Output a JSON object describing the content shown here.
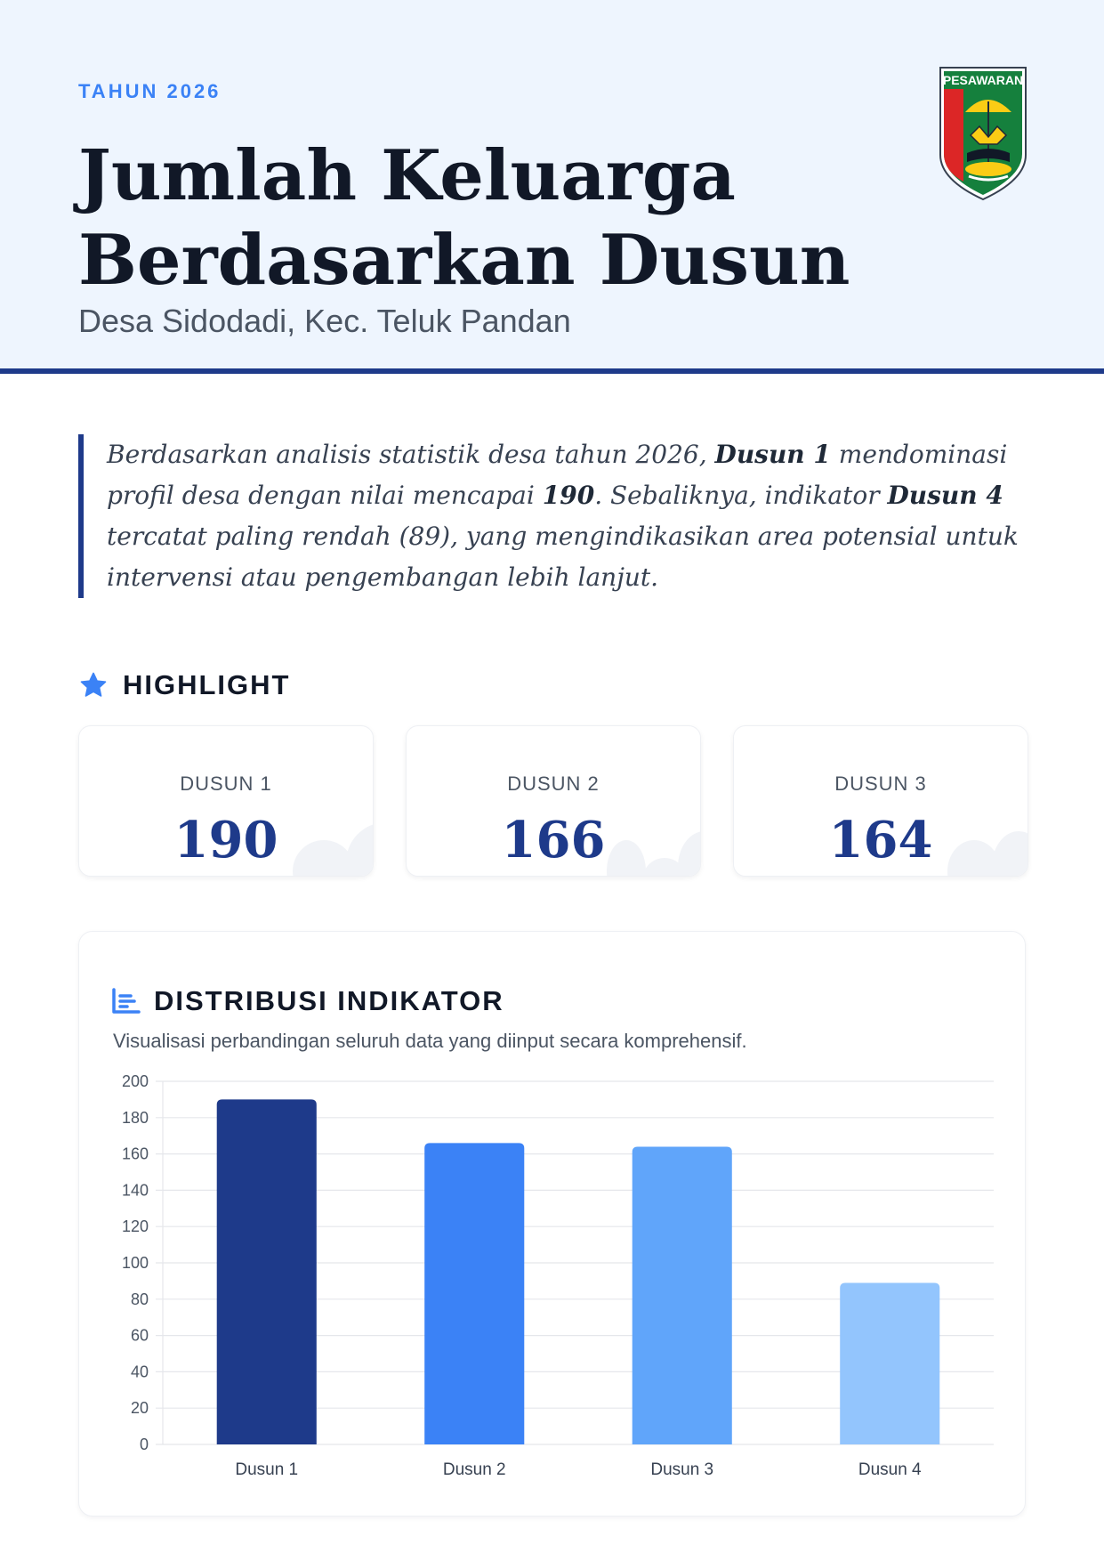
{
  "header": {
    "eyebrow": "TAHUN 2026",
    "title_line1": "Jumlah Keluarga",
    "title_line2": "Berdasarkan Dusun",
    "subtitle": "Desa Sidodadi, Kec. Teluk Pandan",
    "logo_text": "PESAWARAN"
  },
  "summary": {
    "p1": "Berdasarkan analisis statistik desa tahun 2026, ",
    "b1": "Dusun 1",
    "p2": " mendominasi profil desa dengan nilai mencapai ",
    "b2": "190",
    "p3": ". Sebaliknya, indikator ",
    "b3": "Dusun 4",
    "p4": " tercatat paling rendah (89), yang mengindikasikan area potensial untuk intervensi atau pengembangan lebih lanjut."
  },
  "highlight": {
    "title": "HIGHLIGHT",
    "cards": [
      {
        "label": "DUSUN 1",
        "value": "190"
      },
      {
        "label": "DUSUN 2",
        "value": "166"
      },
      {
        "label": "DUSUN 3",
        "value": "164"
      }
    ]
  },
  "distribution": {
    "title": "DISTRIBUSI INDIKATOR",
    "description": "Visualisasi perbandingan seluruh data yang diinput secara komprehensif."
  },
  "colors": {
    "navy": "#1e3a8a",
    "accent": "#3b82f6",
    "bars": [
      "#1e3a8a",
      "#3b82f6",
      "#60a5fa",
      "#93c5fd"
    ]
  },
  "chart_data": {
    "type": "bar",
    "categories": [
      "Dusun 1",
      "Dusun 2",
      "Dusun 3",
      "Dusun 4"
    ],
    "values": [
      190,
      166,
      164,
      89
    ],
    "ylim": [
      0,
      200
    ],
    "yticks": [
      0,
      20,
      40,
      60,
      80,
      100,
      120,
      140,
      160,
      180,
      200
    ],
    "grid": true,
    "legend": "none"
  }
}
